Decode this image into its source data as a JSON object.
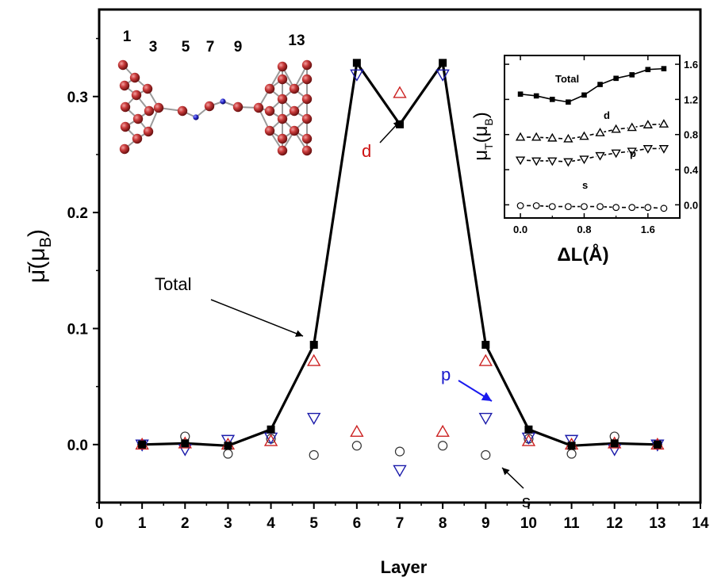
{
  "chart_data": [
    {
      "type": "line",
      "title": "",
      "xlabel": "Layer",
      "ylabel_main": "μ̄(μ",
      "ylabel_sub": "B",
      "ylabel_close": ")",
      "xlim": [
        0,
        14
      ],
      "ylim": [
        -0.05,
        0.375
      ],
      "xticks": [
        "0",
        "1",
        "2",
        "3",
        "4",
        "5",
        "6",
        "7",
        "8",
        "9",
        "10",
        "11",
        "12",
        "13",
        "14"
      ],
      "yticks": [
        "0.0",
        "0.1",
        "0.2",
        "0.3"
      ],
      "x": [
        1,
        2,
        3,
        4,
        5,
        6,
        7,
        8,
        9,
        10,
        11,
        12,
        13
      ],
      "series": [
        {
          "name": "Total",
          "marker": "square",
          "color": "#000000",
          "line": true,
          "values": [
            0.0,
            0.001,
            -0.001,
            0.013,
            0.086,
            0.329,
            0.276,
            0.329,
            0.086,
            0.013,
            -0.001,
            0.001,
            0.0
          ]
        },
        {
          "name": "d",
          "marker": "triangle-up",
          "color": "#cc2222",
          "line": false,
          "values": [
            0.0,
            0.001,
            0.0,
            0.003,
            0.072,
            0.011,
            0.303,
            0.011,
            0.072,
            0.003,
            0.0,
            0.001,
            0.0
          ]
        },
        {
          "name": "p",
          "marker": "triangle-down",
          "color": "#1a1aaa",
          "line": false,
          "values": [
            0.0,
            -0.004,
            0.004,
            0.006,
            0.023,
            0.319,
            -0.022,
            0.319,
            0.023,
            0.006,
            0.004,
            -0.004,
            0.0
          ]
        },
        {
          "name": "s",
          "marker": "circle",
          "color": "#333333",
          "line": false,
          "values": [
            0.0,
            0.007,
            -0.008,
            0.005,
            -0.009,
            -0.001,
            -0.006,
            -0.001,
            -0.009,
            0.005,
            -0.008,
            0.007,
            0.0
          ]
        }
      ],
      "annotations": {
        "total": "Total",
        "d": "d",
        "p": "p",
        "s": "s"
      },
      "structure_labels": [
        "1",
        "3",
        "5",
        "7",
        "9",
        "13"
      ]
    },
    {
      "type": "line",
      "title": "",
      "xlabel": "ΔL(Å)",
      "ylabel_main": "μ",
      "ylabel_sub": "T",
      "ylabel_rest": "(μ",
      "ylabel_sub2": "B",
      "ylabel_close": ")",
      "xlim": [
        -0.2,
        2.0
      ],
      "ylim": [
        -0.15,
        1.7
      ],
      "xticks": [
        "0.0",
        "0.8",
        "1.6"
      ],
      "yticks": [
        "0.0",
        "0.4",
        "0.8",
        "1.2",
        "1.6"
      ],
      "x": [
        0.0,
        0.2,
        0.4,
        0.6,
        0.8,
        1.0,
        1.2,
        1.4,
        1.6,
        1.8
      ],
      "series": [
        {
          "name": "Total",
          "marker": "square",
          "values": [
            1.26,
            1.24,
            1.2,
            1.17,
            1.25,
            1.37,
            1.44,
            1.48,
            1.54,
            1.55
          ]
        },
        {
          "name": "d",
          "marker": "triangle-up",
          "values": [
            0.77,
            0.77,
            0.76,
            0.75,
            0.78,
            0.82,
            0.86,
            0.88,
            0.91,
            0.92
          ]
        },
        {
          "name": "p",
          "marker": "triangle-down",
          "values": [
            0.51,
            0.5,
            0.5,
            0.49,
            0.52,
            0.56,
            0.59,
            0.61,
            0.64,
            0.64
          ]
        },
        {
          "name": "s",
          "marker": "circle",
          "values": [
            -0.01,
            -0.01,
            -0.02,
            -0.02,
            -0.02,
            -0.02,
            -0.03,
            -0.03,
            -0.03,
            -0.04
          ]
        }
      ]
    }
  ]
}
